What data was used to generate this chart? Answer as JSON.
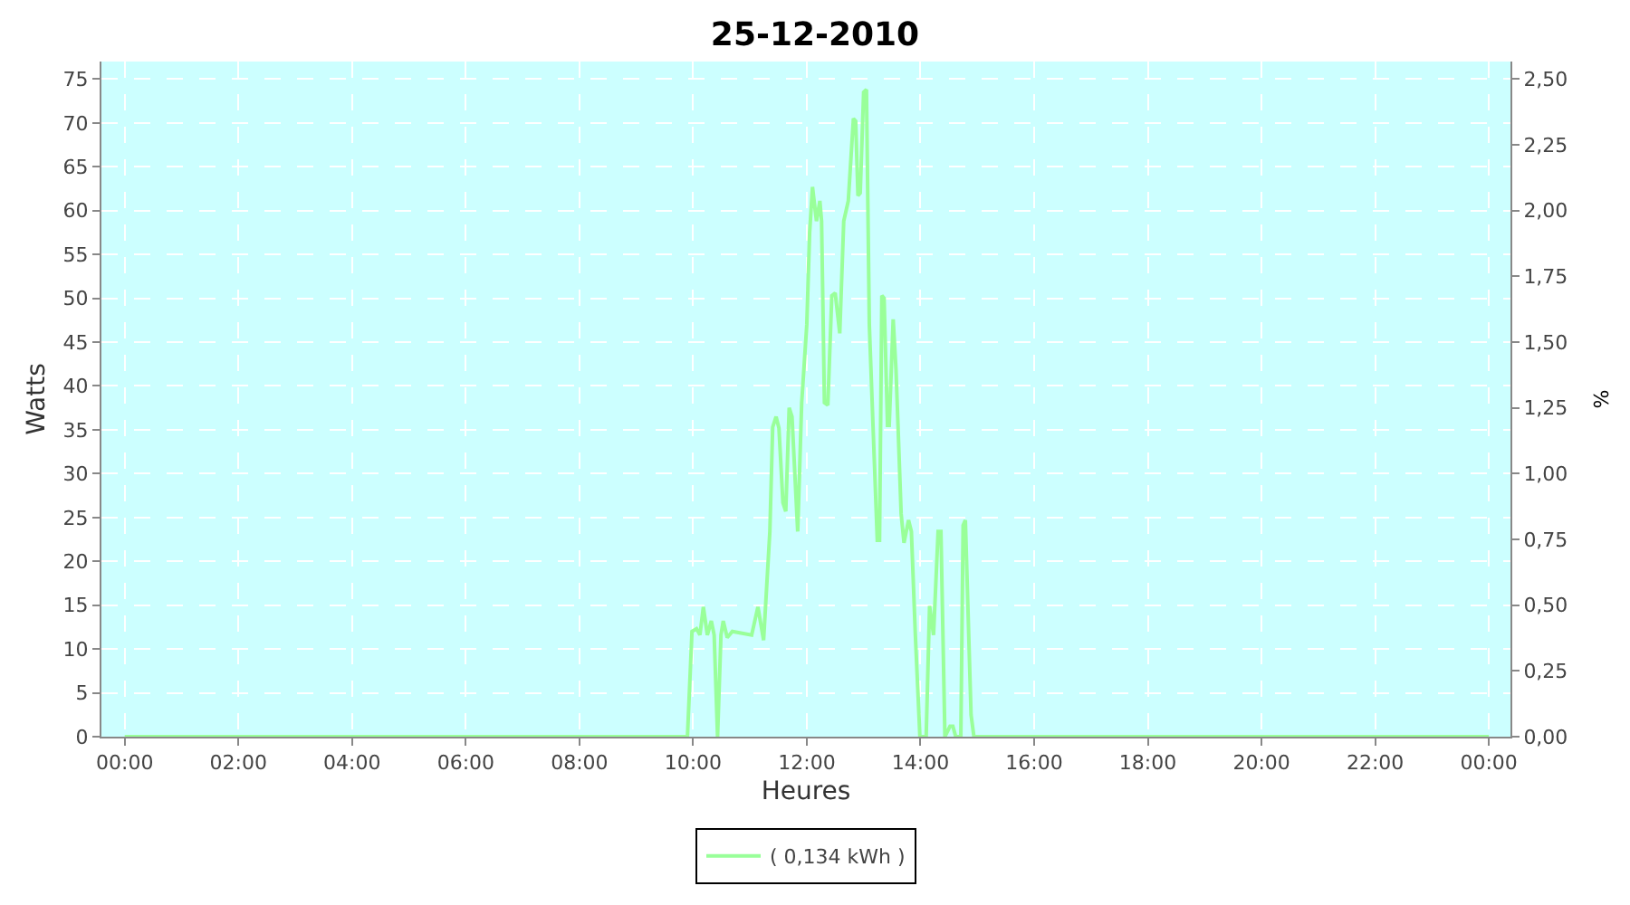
{
  "chart_data": {
    "type": "line",
    "title": "25-12-2010",
    "xlabel": "Heures",
    "ylabel": "Watts",
    "y2label": "%",
    "x": [
      0,
      9.9,
      9.98,
      10.06,
      10.12,
      10.18,
      10.25,
      10.32,
      10.37,
      10.43,
      10.49,
      10.53,
      10.6,
      10.69,
      11.03,
      11.14,
      11.24,
      11.35,
      11.4,
      11.46,
      11.51,
      11.58,
      11.63,
      11.69,
      11.74,
      11.84,
      11.91,
      12.0,
      12.05,
      12.1,
      12.17,
      12.23,
      12.26,
      12.31,
      12.37,
      12.44,
      12.5,
      12.58,
      12.65,
      12.73,
      12.82,
      12.86,
      12.9,
      12.94,
      13.0,
      13.05,
      13.1,
      13.17,
      13.24,
      13.28,
      13.32,
      13.36,
      13.42,
      13.45,
      13.52,
      13.57,
      13.66,
      13.71,
      13.79,
      13.84,
      13.91,
      13.99,
      14.1,
      14.16,
      14.23,
      14.31,
      14.36,
      14.43,
      14.52,
      14.57,
      14.62,
      14.71,
      14.75,
      14.79,
      14.89,
      14.94,
      24.0
    ],
    "series": [
      {
        "name": "( 0,134 kWh )",
        "color": "#99ff99",
        "values": [
          0,
          0,
          12.0,
          12.3,
          11.6,
          14.8,
          11.6,
          13.2,
          11.6,
          0,
          11.6,
          13.2,
          11.3,
          12.0,
          11.6,
          14.8,
          11.0,
          23.4,
          35.3,
          36.5,
          35.2,
          26.7,
          25.7,
          37.5,
          36.5,
          23.4,
          38.1,
          47.0,
          57.5,
          62.7,
          58.8,
          61.1,
          58.8,
          38.1,
          37.8,
          50.3,
          50.6,
          46.0,
          58.8,
          61.1,
          70.5,
          70.2,
          61.7,
          62.0,
          73.5,
          73.8,
          47.0,
          34.6,
          22.4,
          22.4,
          50.3,
          50.0,
          35.5,
          35.5,
          47.6,
          41.8,
          25.4,
          22.1,
          24.7,
          23.4,
          11.6,
          0,
          0,
          14.9,
          11.6,
          23.4,
          23.4,
          0,
          1.2,
          1.2,
          0,
          0,
          24.1,
          24.7,
          2.5,
          0,
          0
        ]
      }
    ],
    "xlim": [
      -0.41,
      24.38
    ],
    "xticks": [
      {
        "value": 0,
        "label": "00:00"
      },
      {
        "value": 2,
        "label": "02:00"
      },
      {
        "value": 4,
        "label": "04:00"
      },
      {
        "value": 6,
        "label": "06:00"
      },
      {
        "value": 8,
        "label": "08:00"
      },
      {
        "value": 10,
        "label": "10:00"
      },
      {
        "value": 12,
        "label": "12:00"
      },
      {
        "value": 14,
        "label": "14:00"
      },
      {
        "value": 16,
        "label": "16:00"
      },
      {
        "value": 18,
        "label": "18:00"
      },
      {
        "value": 20,
        "label": "20:00"
      },
      {
        "value": 22,
        "label": "22:00"
      },
      {
        "value": 24,
        "label": "00:00"
      }
    ],
    "ylim": [
      0,
      77
    ],
    "yticks": [
      0,
      5,
      10,
      15,
      20,
      25,
      30,
      35,
      40,
      45,
      50,
      55,
      60,
      65,
      70,
      75
    ],
    "y2lim": [
      0,
      2.567
    ],
    "y2ticks": [
      {
        "value": 0,
        "label": "0,00"
      },
      {
        "value": 0.25,
        "label": "0,25"
      },
      {
        "value": 0.5,
        "label": "0,50"
      },
      {
        "value": 0.75,
        "label": "0,75"
      },
      {
        "value": 1.0,
        "label": "1,00"
      },
      {
        "value": 1.25,
        "label": "1,25"
      },
      {
        "value": 1.5,
        "label": "1,50"
      },
      {
        "value": 1.75,
        "label": "1,75"
      },
      {
        "value": 2.0,
        "label": "2,00"
      },
      {
        "value": 2.25,
        "label": "2,25"
      },
      {
        "value": 2.5,
        "label": "2,50"
      }
    ],
    "grid": true,
    "legend": "bottom",
    "marker": "none",
    "line_style": "solid"
  }
}
